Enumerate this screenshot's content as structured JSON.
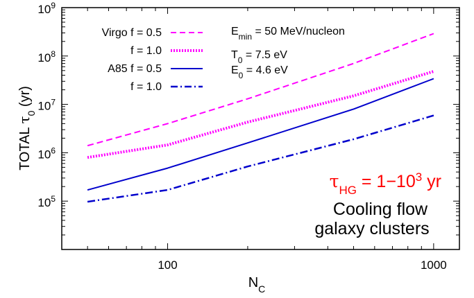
{
  "chart_data": {
    "type": "line",
    "xscale": "log",
    "yscale": "log",
    "xlim": [
      40,
      1250
    ],
    "ylim": [
      10000,
      1000000000
    ],
    "grid": false,
    "xlabel": {
      "base": "N",
      "sub": "C"
    },
    "ylabel": {
      "pre": "TOTAL ",
      "greek": "τ",
      "sub": "0",
      "post": "  (yr)"
    },
    "xticks": [
      {
        "value": 100,
        "label": "100"
      },
      {
        "value": 1000,
        "label": "1000"
      }
    ],
    "yticks": [
      {
        "value": 100000,
        "base": "10",
        "exp": "5"
      },
      {
        "value": 1000000,
        "base": "10",
        "exp": "6"
      },
      {
        "value": 10000000,
        "base": "10",
        "exp": "7"
      },
      {
        "value": 100000000,
        "base": "10",
        "exp": "8"
      },
      {
        "value": 1000000000,
        "base": "10",
        "exp": "9"
      }
    ],
    "legend_position": "top-left",
    "series": [
      {
        "legend_label": "Virgo f = 0.5",
        "color": "#ff00ff",
        "style": "dashed",
        "x": [
          50,
          100,
          200,
          500,
          1000
        ],
        "y": [
          1400000,
          4000000,
          13000000,
          70000000,
          290000000
        ]
      },
      {
        "legend_label": "f = 1.0",
        "color": "#ff00ff",
        "style": "dotted",
        "x": [
          50,
          100,
          200,
          500,
          1000
        ],
        "y": [
          800000,
          1450000,
          4300000,
          15000000,
          48000000
        ]
      },
      {
        "legend_label": "A85  f = 0.5",
        "color": "#0000cc",
        "style": "solid",
        "x": [
          50,
          100,
          200,
          500,
          1000
        ],
        "y": [
          170000,
          480000,
          1600000,
          8000000,
          34000000
        ]
      },
      {
        "legend_label": "f = 1.0",
        "color": "#0000cc",
        "style": "dashdot",
        "x": [
          50,
          100,
          200,
          500,
          1000
        ],
        "y": [
          97000,
          170000,
          520000,
          1900000,
          5900000
        ]
      }
    ],
    "parameters": [
      {
        "base": "E",
        "sub": "min",
        "rest": " = 50 MeV/nucleon"
      },
      {
        "base": "T",
        "sub": "0",
        "rest": " = 7.5 eV"
      },
      {
        "base": "E",
        "sub": "0",
        "rest": " = 4.6 eV"
      }
    ],
    "annotations": {
      "tau_hg": {
        "greek": "τ",
        "sub": "HG",
        "mid": " = 1−10",
        "sup": "3",
        "post": " yr",
        "color": "#ff0000"
      },
      "line1": "Cooling flow",
      "line2": "galaxy clusters"
    }
  }
}
